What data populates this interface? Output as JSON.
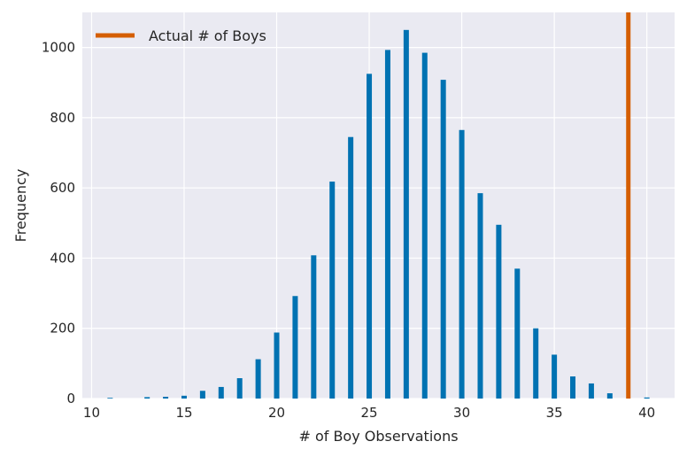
{
  "chart_data": {
    "type": "bar",
    "xlabel": "# of Boy Observations",
    "ylabel": "Frequency",
    "xlim": [
      9.5,
      41.5
    ],
    "ylim": [
      0,
      1100
    ],
    "x_ticks": [
      10,
      15,
      20,
      25,
      30,
      35,
      40
    ],
    "y_ticks": [
      0,
      200,
      400,
      600,
      800,
      1000
    ],
    "grid": true,
    "legend_position": "top-left",
    "series": [
      {
        "x": [
          11,
          13,
          14,
          15,
          16,
          17,
          18,
          19,
          20,
          21,
          22,
          23,
          24,
          25,
          26,
          27,
          28,
          29,
          30,
          31,
          32,
          33,
          34,
          35,
          36,
          37,
          38,
          40
        ],
        "values": [
          2,
          4,
          5,
          8,
          22,
          33,
          58,
          112,
          188,
          292,
          408,
          618,
          745,
          925,
          993,
          1050,
          985,
          908,
          765,
          585,
          495,
          370,
          200,
          125,
          63,
          43,
          15,
          3
        ]
      }
    ],
    "reference_line": {
      "name": "Actual # of Boys",
      "x": 39
    },
    "colors": {
      "bars": "#0072B2",
      "reference_line": "#D55E00",
      "background": "#EAEAF2",
      "grid": "#FFFFFF"
    }
  }
}
